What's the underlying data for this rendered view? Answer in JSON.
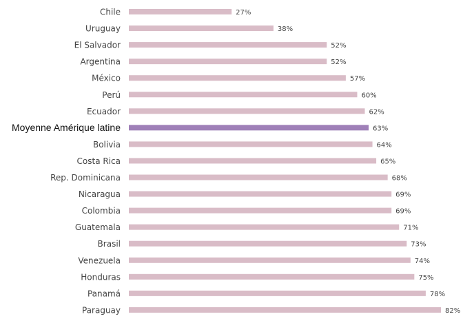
{
  "chart_data": {
    "type": "bar",
    "orientation": "horizontal",
    "categories": [
      "Chile",
      "Uruguay",
      "El Salvador",
      "Argentina",
      "México",
      "Perú",
      "Ecuador",
      "Moyenne Amérique latine",
      "Bolivia",
      "Costa Rica",
      "Rep. Dominicana",
      "Nicaragua",
      "Colombia",
      "Guatemala",
      "Brasil",
      "Venezuela",
      "Honduras",
      "Panamá",
      "Paraguay"
    ],
    "values": [
      27,
      38,
      52,
      52,
      57,
      60,
      62,
      63,
      64,
      65,
      68,
      69,
      69,
      71,
      73,
      74,
      75,
      78,
      82
    ],
    "value_labels": [
      "27%",
      "38%",
      "52%",
      "52%",
      "57%",
      "60%",
      "62%",
      "63%",
      "64%",
      "65%",
      "68%",
      "69%",
      "69%",
      "71%",
      "73%",
      "74%",
      "75%",
      "78%",
      "82%"
    ],
    "highlight_category": "Moyenne Amérique latine",
    "xlim": [
      0,
      82
    ],
    "unit": "%",
    "grid": false,
    "legend": "none",
    "title": "",
    "xlabel": "",
    "ylabel": ""
  },
  "colors": {
    "bar": "#d9bcc7",
    "highlight_bar": "#9f80b8",
    "label": "#444444",
    "highlight_label": "#111111"
  }
}
